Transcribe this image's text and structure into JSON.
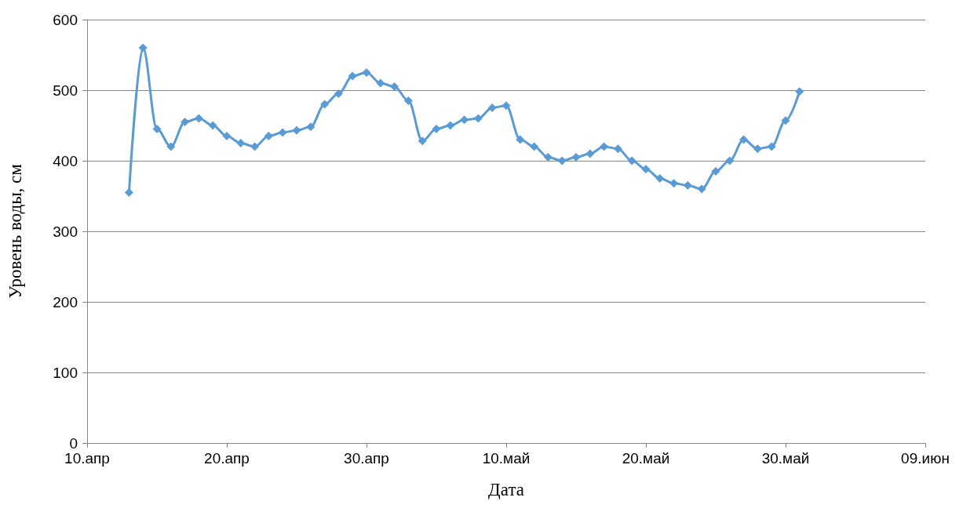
{
  "chart_data": {
    "type": "line",
    "xlabel": "Дата",
    "ylabel": "Уровень воды, см",
    "x": [
      "--04-13",
      "--04-14",
      "--04-15",
      "--04-16",
      "--04-17",
      "--04-18",
      "--04-19",
      "--04-20",
      "--04-21",
      "--04-22",
      "--04-23",
      "--04-24",
      "--04-25",
      "--04-26",
      "--04-27",
      "--04-28",
      "--04-29",
      "--04-30",
      "--05-01",
      "--05-02",
      "--05-03",
      "--05-04",
      "--05-05",
      "--05-06",
      "--05-07",
      "--05-08",
      "--05-09",
      "--05-10",
      "--05-11",
      "--05-12",
      "--05-13",
      "--05-14",
      "--05-15",
      "--05-16",
      "--05-17",
      "--05-18",
      "--05-19",
      "--05-20",
      "--05-21",
      "--05-22",
      "--05-23",
      "--05-24",
      "--05-25",
      "--05-26",
      "--05-27",
      "--05-28",
      "--05-29",
      "--05-30",
      "--05-31"
    ],
    "series": [
      {
        "color": "#5b9bd5",
        "values": [
          355,
          560,
          445,
          420,
          455,
          460,
          450,
          435,
          425,
          420,
          435,
          440,
          443,
          448,
          480,
          495,
          520,
          525,
          510,
          505,
          485,
          428,
          445,
          450,
          458,
          460,
          475,
          478,
          430,
          420,
          405,
          400,
          405,
          410,
          420,
          417,
          400,
          388,
          375,
          368,
          365,
          360,
          385,
          400,
          430,
          417,
          420,
          457,
          498
        ]
      }
    ],
    "xlim": [
      "--04-10",
      "--06-09"
    ],
    "xticks": [
      {
        "value": "--04-10",
        "label": "10.апр"
      },
      {
        "value": "--04-20",
        "label": "20.апр"
      },
      {
        "value": "--04-30",
        "label": "30.апр"
      },
      {
        "value": "--05-10",
        "label": "10.май"
      },
      {
        "value": "--05-20",
        "label": "20.май"
      },
      {
        "value": "--05-30",
        "label": "30.май"
      },
      {
        "value": "--06-09",
        "label": "09.июн"
      }
    ],
    "ylim": [
      0,
      600
    ],
    "yticks": [
      0,
      100,
      200,
      300,
      400,
      500,
      600
    ],
    "grid": "y",
    "marker": "diamond",
    "line_style": "solid"
  }
}
